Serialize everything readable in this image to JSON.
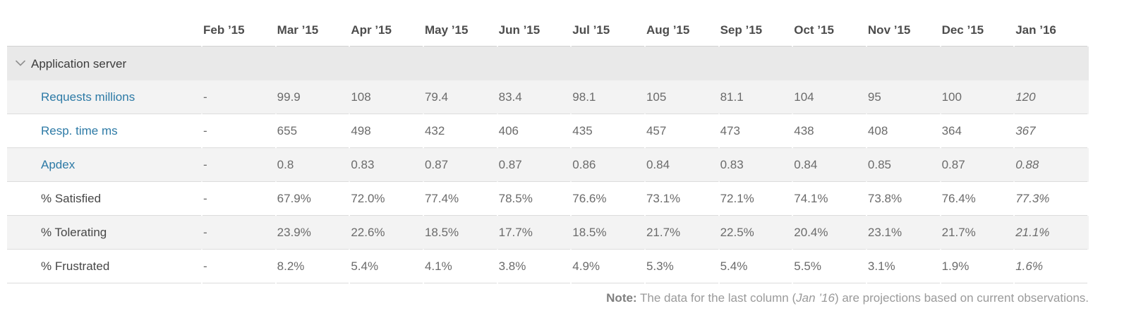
{
  "table": {
    "columns": [
      "",
      "Feb ’15",
      "Mar ’15",
      "Apr ’15",
      "May ’15",
      "Jun ’15",
      "Jul ’15",
      "Aug ’15",
      "Sep ’15",
      "Oct ’15",
      "Nov ’15",
      "Dec ’15",
      "Jan ’16"
    ],
    "group": {
      "label": "Application server"
    },
    "rows": [
      {
        "label": "Requests millions",
        "link": true,
        "values": [
          "-",
          "99.9",
          "108",
          "79.4",
          "83.4",
          "98.1",
          "105",
          "81.1",
          "104",
          "95",
          "100",
          "120"
        ]
      },
      {
        "label": "Resp. time ms",
        "link": true,
        "values": [
          "-",
          "655",
          "498",
          "432",
          "406",
          "435",
          "457",
          "473",
          "438",
          "408",
          "364",
          "367"
        ]
      },
      {
        "label": "Apdex",
        "link": true,
        "values": [
          "-",
          "0.8",
          "0.83",
          "0.87",
          "0.87",
          "0.86",
          "0.84",
          "0.83",
          "0.84",
          "0.85",
          "0.87",
          "0.88"
        ]
      },
      {
        "label": "% Satisfied",
        "link": false,
        "values": [
          "-",
          "67.9%",
          "72.0%",
          "77.4%",
          "78.5%",
          "76.6%",
          "73.1%",
          "72.1%",
          "74.1%",
          "73.8%",
          "76.4%",
          "77.3%"
        ]
      },
      {
        "label": "% Tolerating",
        "link": false,
        "values": [
          "-",
          "23.9%",
          "22.6%",
          "18.5%",
          "17.7%",
          "18.5%",
          "21.7%",
          "22.5%",
          "20.4%",
          "23.1%",
          "21.7%",
          "21.1%"
        ]
      },
      {
        "label": "% Frustrated",
        "link": false,
        "values": [
          "-",
          "8.2%",
          "5.4%",
          "4.1%",
          "3.8%",
          "4.9%",
          "5.3%",
          "5.4%",
          "5.5%",
          "3.1%",
          "1.9%",
          "1.6%"
        ]
      }
    ]
  },
  "note": {
    "label_bold": "Note:",
    "before_italic": " The data for the last column (",
    "italic": "Jan ’16",
    "after_italic": ") are projections based on current observations."
  },
  "colors": {
    "link_blue": "#2d7aa6",
    "group_row_bg": "#e9e9e9",
    "stripe_bg": "#f3f3f3",
    "row_border": "#dcdcdc",
    "header_text": "#4c4c4c",
    "value_text": "#6b6b6b",
    "chevron": "#8f8f8f",
    "note_text": "#9a9a9a"
  }
}
